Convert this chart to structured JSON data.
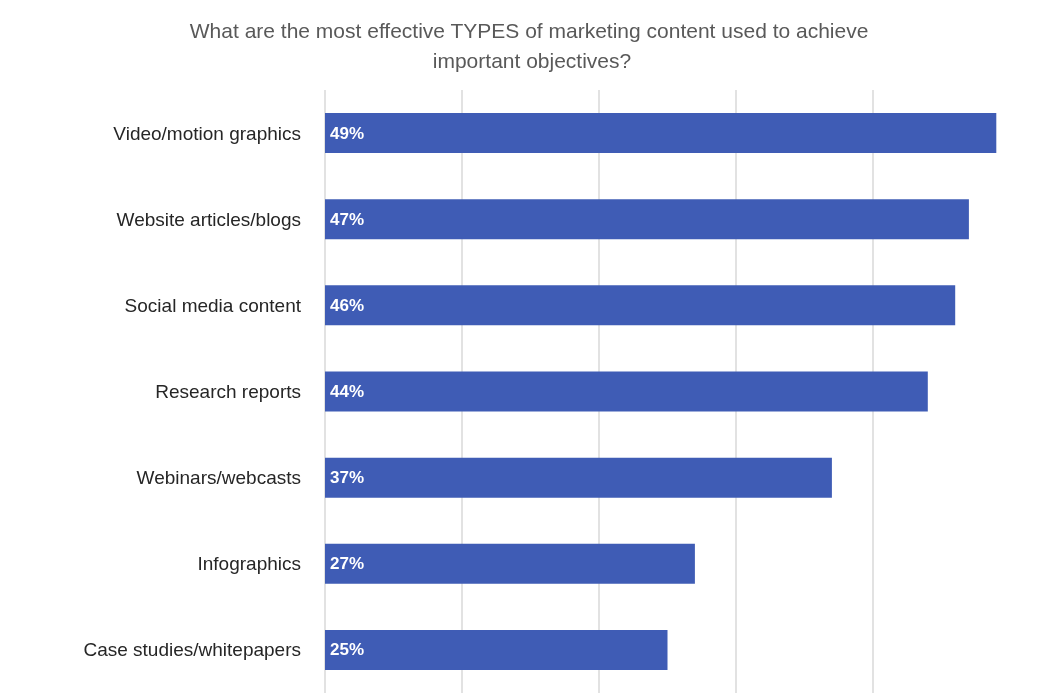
{
  "chart_data": {
    "type": "bar",
    "orientation": "horizontal",
    "title": "What are the most effective TYPES of marketing content used to achieve important objectives?",
    "categories": [
      "Video/motion graphics",
      "Website articles/blogs",
      "Social media content",
      "Research reports",
      "Webinars/webcasts",
      "Infographics",
      "Case studies/whitepapers"
    ],
    "values": [
      49,
      47,
      46,
      44,
      37,
      27,
      25
    ],
    "value_labels": [
      "49%",
      "47%",
      "46%",
      "44%",
      "37%",
      "27%",
      "25%"
    ],
    "color": "#3f5cb5",
    "grid": "x",
    "tick_labels": "y"
  }
}
